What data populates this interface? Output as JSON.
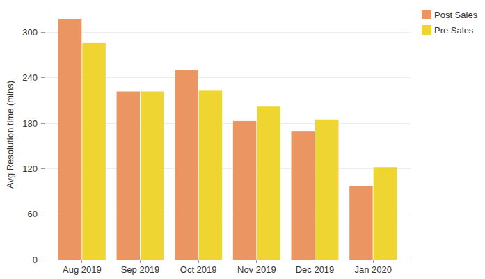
{
  "chart_data": {
    "type": "bar",
    "y_label": "Avg Resolution time (mins)",
    "categories": [
      "Aug 2019",
      "Sep 2019",
      "Oct 2019",
      "Nov 2019",
      "Dec 2019",
      "Jan 2020"
    ],
    "series": [
      {
        "name": "Post Sales",
        "color": "#eb9662",
        "values": [
          318,
          222,
          250,
          183,
          169,
          97
        ]
      },
      {
        "name": "Pre Sales",
        "color": "#eed531",
        "values": [
          286,
          222,
          223,
          202,
          185,
          122
        ]
      }
    ],
    "ylim": [
      0,
      330
    ],
    "yticks": [
      0,
      60,
      120,
      180,
      240,
      300
    ],
    "grid": true,
    "legend": "top-right"
  }
}
